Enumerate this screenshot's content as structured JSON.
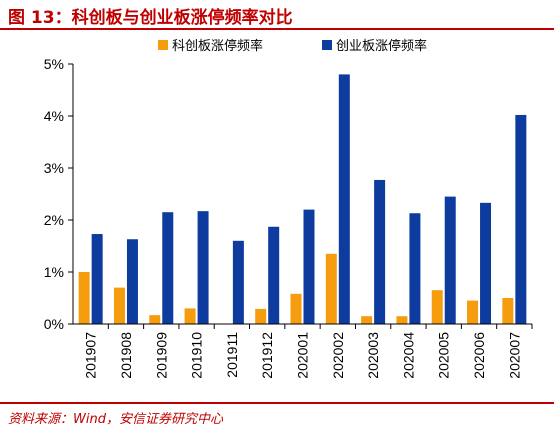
{
  "header": {
    "title": "图 13：科创板与创业板涨停频率对比"
  },
  "footer": {
    "source": "资料来源：Wind，安信证券研究中心"
  },
  "chart_data": {
    "type": "bar",
    "categories": [
      "201907",
      "201908",
      "201909",
      "201910",
      "201911",
      "201912",
      "202001",
      "202002",
      "202003",
      "202004",
      "202005",
      "202006",
      "202007"
    ],
    "series": [
      {
        "name": "科创板涨停频率",
        "color": "#f59d0e",
        "values": [
          1.0,
          0.7,
          0.17,
          0.3,
          0.0,
          0.29,
          0.58,
          1.35,
          0.15,
          0.15,
          0.65,
          0.45,
          0.5
        ]
      },
      {
        "name": "创业板涨停频率",
        "color": "#0d3b9e",
        "values": [
          1.73,
          1.63,
          2.15,
          2.17,
          1.6,
          1.87,
          2.2,
          4.8,
          2.77,
          2.13,
          2.45,
          2.33,
          4.02
        ]
      }
    ],
    "ylim": [
      0,
      5
    ],
    "yticks": [
      "0%",
      "1%",
      "2%",
      "3%",
      "4%",
      "5%"
    ],
    "legend": "top",
    "grid": false
  }
}
